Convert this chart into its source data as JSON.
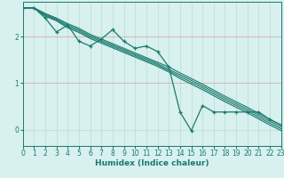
{
  "xlabel": "Humidex (Indice chaleur)",
  "bg_color": "#d8f0ee",
  "grid_color_v": "#b8dcd8",
  "grid_color_h": "#d4a0a0",
  "line_color": "#1a7a6e",
  "xlim": [
    0,
    23
  ],
  "ylim": [
    -0.35,
    2.75
  ],
  "xticks": [
    0,
    1,
    2,
    3,
    4,
    5,
    6,
    7,
    8,
    9,
    10,
    11,
    12,
    13,
    14,
    15,
    16,
    17,
    18,
    19,
    20,
    21,
    22,
    23
  ],
  "yticks": [
    0,
    1,
    2
  ],
  "smooth_series": [
    [
      2.62,
      2.62,
      2.5,
      2.4,
      2.28,
      2.18,
      2.05,
      1.95,
      1.85,
      1.75,
      1.65,
      1.55,
      1.45,
      1.35,
      1.22,
      1.1,
      0.98,
      0.85,
      0.72,
      0.6,
      0.48,
      0.35,
      0.22,
      0.1
    ],
    [
      2.62,
      2.62,
      2.48,
      2.38,
      2.25,
      2.15,
      2.02,
      1.92,
      1.82,
      1.72,
      1.62,
      1.52,
      1.42,
      1.3,
      1.18,
      1.06,
      0.94,
      0.81,
      0.68,
      0.56,
      0.44,
      0.31,
      0.18,
      0.06
    ],
    [
      2.62,
      2.62,
      2.46,
      2.36,
      2.22,
      2.12,
      1.99,
      1.89,
      1.79,
      1.69,
      1.59,
      1.49,
      1.39,
      1.27,
      1.14,
      1.02,
      0.9,
      0.77,
      0.64,
      0.52,
      0.4,
      0.27,
      0.14,
      0.02
    ],
    [
      2.62,
      2.62,
      2.44,
      2.34,
      2.19,
      2.09,
      1.96,
      1.86,
      1.76,
      1.66,
      1.56,
      1.46,
      1.36,
      1.24,
      1.1,
      0.98,
      0.86,
      0.73,
      0.6,
      0.48,
      0.36,
      0.23,
      0.1,
      -0.02
    ]
  ],
  "jagged_series_x": [
    0,
    1,
    2,
    3,
    4,
    5,
    6,
    7,
    8,
    9,
    10,
    11,
    12,
    13,
    14,
    15,
    16,
    17,
    18,
    19,
    20,
    21,
    22,
    23
  ],
  "jagged_series_y": [
    2.62,
    2.62,
    2.4,
    2.1,
    2.25,
    1.9,
    1.8,
    1.95,
    2.15,
    1.9,
    1.75,
    1.8,
    1.68,
    1.35,
    0.38,
    -0.02,
    0.52,
    0.38,
    0.38,
    0.38,
    0.38,
    0.38,
    0.22,
    0.1
  ]
}
